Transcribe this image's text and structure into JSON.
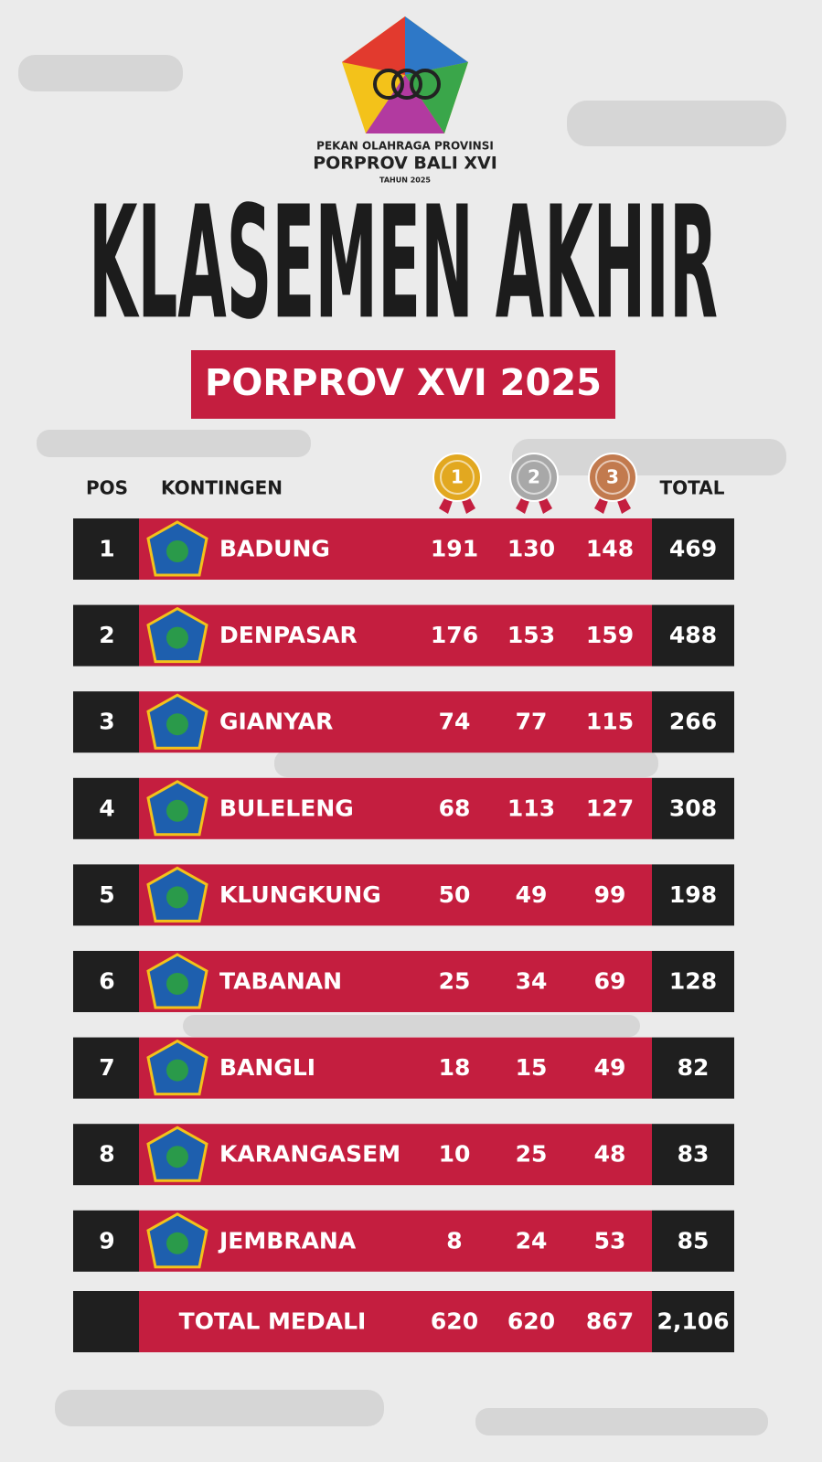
{
  "header": {
    "logo_line1": "PEKAN OLAHRAGA PROVINSI",
    "logo_line2": "PORPROV BALI XVI",
    "logo_line3": "TAHUN 2025",
    "title": "KLASEMEN AKHIR",
    "subtitle": "PORPROV XVI 2025"
  },
  "table": {
    "columns": [
      "POS",
      "KONTINGEN",
      "TOTAL"
    ],
    "medals": [
      {
        "label": "1",
        "color": "#e2a820"
      },
      {
        "label": "2",
        "color": "#a8a8a8"
      },
      {
        "label": "3",
        "color": "#c27a4e"
      }
    ],
    "rows": [
      [
        1,
        "BADUNG",
        191,
        130,
        148,
        469
      ],
      [
        2,
        "DENPASAR",
        176,
        153,
        159,
        488
      ],
      [
        3,
        "GIANYAR",
        74,
        77,
        115,
        266
      ],
      [
        4,
        "BULELENG",
        68,
        113,
        127,
        308
      ],
      [
        5,
        "KLUNGKUNG",
        50,
        49,
        99,
        198
      ],
      [
        6,
        "TABANAN",
        25,
        34,
        69,
        128
      ],
      [
        7,
        "BANGLI",
        18,
        15,
        49,
        82
      ],
      [
        8,
        "KARANGASEM",
        10,
        25,
        48,
        83
      ],
      [
        9,
        "JEMBRANA",
        8,
        24,
        53,
        85
      ]
    ],
    "footer": [
      "TOTAL MEDALI",
      620,
      620,
      867,
      "2,106"
    ]
  }
}
